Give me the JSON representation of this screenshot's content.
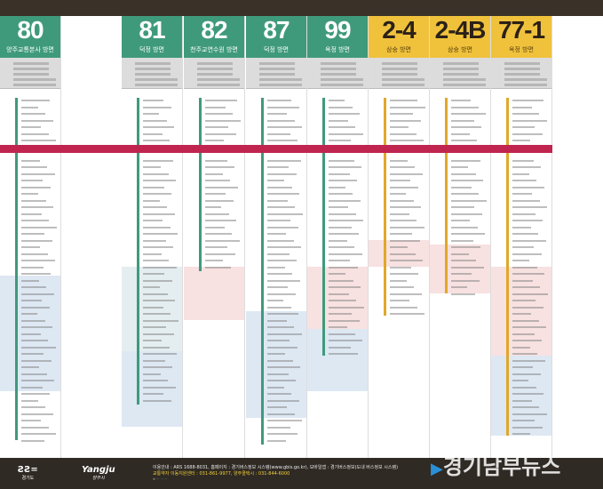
{
  "routes": [
    {
      "number": "80",
      "destination": "양주교통본사 방면",
      "color": "green"
    },
    {
      "number": "81",
      "destination": "덕정 방면",
      "color": "green"
    },
    {
      "number": "82",
      "destination": "천주교연수원 방면",
      "color": "green"
    },
    {
      "number": "87",
      "destination": "덕정 방면",
      "color": "green"
    },
    {
      "number": "99",
      "destination": "옥정 방면",
      "color": "green"
    },
    {
      "number": "2-4",
      "destination": "삼숭 방면",
      "color": "yellow"
    },
    {
      "number": "2-4B",
      "destination": "삼숭 방면",
      "color": "yellow"
    },
    {
      "number": "77-1",
      "destination": "옥정 방면",
      "color": "yellow"
    }
  ],
  "colors": {
    "green": "#3f9a7c",
    "yellow": "#f0c23c",
    "red_band": "#c0254f",
    "top_bar": "#3a3128",
    "footer": "#2f2a24"
  },
  "footer": {
    "logo_gyeonggi": "경기도",
    "logo_gyeonggi_mark": "ƧƧ=",
    "logo_yangju": "Yangju",
    "logo_yangju_sub": "양주시",
    "info_line": "이용안내 : ARS 1688-8031, 홈페이지 : 경기버스정보 시스템(www.gbis.go.kr), 모바일앱 : 경기버스정보(도내 버스정보 시스템)",
    "contact_line": "교통약자 이동지원센터 : 031-861-9977, 양주콜택시 : 031-844-6000"
  },
  "watermark": "경기남부뉴스"
}
